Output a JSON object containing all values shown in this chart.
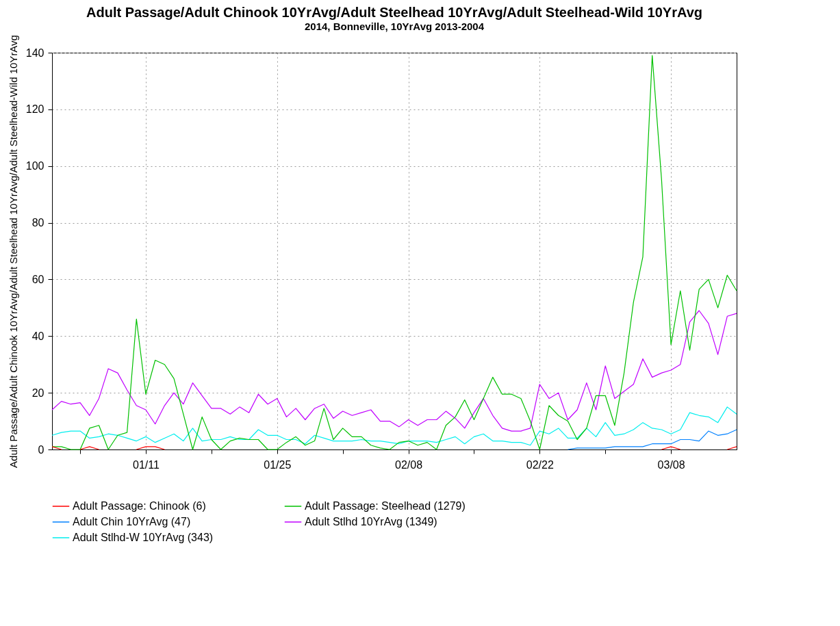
{
  "chart_data": {
    "type": "line",
    "title": "Adult Passage/Adult Chinook 10YrAvg/Adult Steelhead 10YrAvg/Adult Steelhead-Wild 10YrAvg",
    "subtitle": "2014, Bonneville, 10YrAvg 2013-2004",
    "ylabel": "Adult Passage/Adult Chinook 10YrAvg/Adult Steelhead 10YrAvg/Adult Steelhead-Wild 10YrAvg",
    "x": [
      "2014-01-01",
      "2014-01-02",
      "2014-01-03",
      "2014-01-04",
      "2014-01-05",
      "2014-01-06",
      "2014-01-07",
      "2014-01-08",
      "2014-01-09",
      "2014-01-10",
      "2014-01-11",
      "2014-01-12",
      "2014-01-13",
      "2014-01-14",
      "2014-01-15",
      "2014-01-16",
      "2014-01-17",
      "2014-01-18",
      "2014-01-19",
      "2014-01-20",
      "2014-01-21",
      "2014-01-22",
      "2014-01-23",
      "2014-01-24",
      "2014-01-25",
      "2014-01-26",
      "2014-01-27",
      "2014-01-28",
      "2014-01-29",
      "2014-01-30",
      "2014-01-31",
      "2014-02-01",
      "2014-02-02",
      "2014-02-03",
      "2014-02-04",
      "2014-02-05",
      "2014-02-06",
      "2014-02-07",
      "2014-02-08",
      "2014-02-09",
      "2014-02-10",
      "2014-02-11",
      "2014-02-12",
      "2014-02-13",
      "2014-02-14",
      "2014-02-15",
      "2014-02-16",
      "2014-02-17",
      "2014-02-18",
      "2014-02-19",
      "2014-02-20",
      "2014-02-21",
      "2014-02-22",
      "2014-02-23",
      "2014-02-24",
      "2014-02-25",
      "2014-02-26",
      "2014-02-27",
      "2014-02-28",
      "2014-03-01",
      "2014-03-02",
      "2014-03-03",
      "2014-03-04",
      "2014-03-05",
      "2014-03-06",
      "2014-03-07",
      "2014-03-08",
      "2014-03-09",
      "2014-03-10",
      "2014-03-11",
      "2014-03-12",
      "2014-03-13",
      "2014-03-14",
      "2014-03-15"
    ],
    "series": [
      {
        "name": "Adult Passage: Chinook (6)",
        "color": "#ff0000",
        "values": [
          1,
          0,
          null,
          0,
          1,
          0,
          null,
          null,
          null,
          0,
          1,
          1,
          0,
          null,
          null,
          null,
          null,
          null,
          null,
          null,
          null,
          null,
          null,
          null,
          null,
          null,
          null,
          null,
          null,
          null,
          null,
          null,
          null,
          null,
          null,
          null,
          null,
          null,
          null,
          null,
          null,
          null,
          null,
          null,
          null,
          null,
          null,
          null,
          null,
          null,
          null,
          null,
          null,
          null,
          null,
          null,
          null,
          null,
          null,
          null,
          null,
          null,
          null,
          null,
          null,
          0,
          1,
          0,
          null,
          null,
          null,
          null,
          0,
          1
        ]
      },
      {
        "name": "Adult Passage: Steelhead (1279)",
        "color": "#00c000",
        "values": [
          1,
          1,
          0,
          0,
          7.5,
          8.5,
          0,
          5,
          6,
          46,
          19.5,
          31.5,
          30,
          25,
          12.5,
          0,
          11.5,
          3.5,
          0,
          3,
          4,
          3.5,
          3.5,
          0,
          0,
          2.5,
          4.5,
          1.5,
          3,
          14.5,
          3.5,
          7.5,
          4.5,
          4.5,
          1.5,
          0.5,
          0,
          2.5,
          3,
          1.5,
          2.5,
          0,
          8.5,
          11.5,
          17.5,
          10.5,
          18,
          25.5,
          19.5,
          19.5,
          18,
          10,
          0,
          15.5,
          12,
          10,
          3.5,
          7.5,
          19,
          19,
          8.5,
          27,
          52,
          68,
          139,
          95,
          37,
          56,
          35,
          56.5,
          60,
          50,
          61.5,
          56
        ]
      },
      {
        "name": "Adult Chin 10YrAvg (47)",
        "color": "#0080ff",
        "values": [
          null,
          null,
          null,
          null,
          null,
          null,
          null,
          null,
          null,
          null,
          null,
          null,
          null,
          null,
          null,
          null,
          null,
          null,
          null,
          null,
          null,
          null,
          null,
          null,
          null,
          null,
          null,
          null,
          null,
          null,
          null,
          null,
          null,
          null,
          null,
          null,
          null,
          null,
          null,
          null,
          null,
          null,
          null,
          null,
          null,
          null,
          null,
          null,
          null,
          null,
          null,
          null,
          null,
          null,
          null,
          0,
          0.5,
          0.5,
          0.5,
          0.5,
          1,
          1,
          1,
          1,
          2,
          2,
          2,
          3.5,
          3.5,
          3,
          6.5,
          5,
          5.5,
          7
        ]
      },
      {
        "name": "Adult Stlhd 10YrAvg (1349)",
        "color": "#c000ff",
        "values": [
          14,
          17,
          16,
          16.5,
          12,
          18,
          28.5,
          27,
          21,
          15.5,
          14,
          9,
          15.5,
          20,
          16,
          23.5,
          19,
          14.5,
          14.5,
          12.5,
          15,
          13,
          19.5,
          16,
          18,
          11.5,
          14.5,
          10.5,
          14.5,
          16,
          11,
          13.5,
          12,
          13,
          14,
          10,
          10,
          8,
          10.5,
          8.5,
          10.5,
          10.5,
          13.5,
          11,
          7.5,
          13,
          18,
          12,
          7.5,
          6.5,
          6.5,
          7.5,
          23,
          18,
          20,
          10.5,
          14,
          23.5,
          14,
          29.5,
          18,
          20.5,
          23,
          32,
          25.5,
          27,
          28,
          30,
          45,
          49,
          44.5,
          33.5,
          47,
          48
        ]
      },
      {
        "name": "Adult Stlhd-W 10YrAvg (343)",
        "color": "#00eeee",
        "values": [
          5,
          6,
          6.5,
          6.5,
          4,
          4.5,
          5.5,
          5,
          4,
          3,
          4.5,
          2.5,
          4,
          5.5,
          3,
          7.5,
          3,
          3.5,
          3.5,
          4.5,
          3.5,
          3.5,
          7,
          5,
          5,
          3.5,
          3.5,
          2,
          5,
          4,
          3,
          3,
          3,
          3.5,
          3,
          3,
          2.5,
          2,
          3,
          3,
          3,
          2.5,
          3.5,
          4.5,
          2,
          4.5,
          5.5,
          3,
          3,
          2.5,
          2.5,
          1.5,
          6.5,
          5.5,
          7.5,
          4,
          4,
          7.5,
          4.5,
          9.5,
          5,
          5.5,
          7,
          9.5,
          7.5,
          7,
          5.5,
          7,
          13,
          12,
          11.5,
          9.5,
          15,
          12.5
        ]
      }
    ],
    "xlim": [
      "2014-01-01",
      "2014-03-15"
    ],
    "xticks": [
      {
        "value": "2014-01-04",
        "label": null
      },
      {
        "value": "2014-01-11",
        "label": "01/11"
      },
      {
        "value": "2014-01-18",
        "label": null
      },
      {
        "value": "2014-01-25",
        "label": "01/25"
      },
      {
        "value": "2014-02-01",
        "label": null
      },
      {
        "value": "2014-02-08",
        "label": "02/08"
      },
      {
        "value": "2014-02-15",
        "label": null
      },
      {
        "value": "2014-02-22",
        "label": "02/22"
      },
      {
        "value": "2014-03-01",
        "label": null
      },
      {
        "value": "2014-03-08",
        "label": "03/08"
      }
    ],
    "ylim": [
      0,
      140
    ],
    "yticks": [
      0,
      20,
      40,
      60,
      80,
      100,
      120,
      140
    ],
    "grid": true,
    "legend": "bottom"
  }
}
